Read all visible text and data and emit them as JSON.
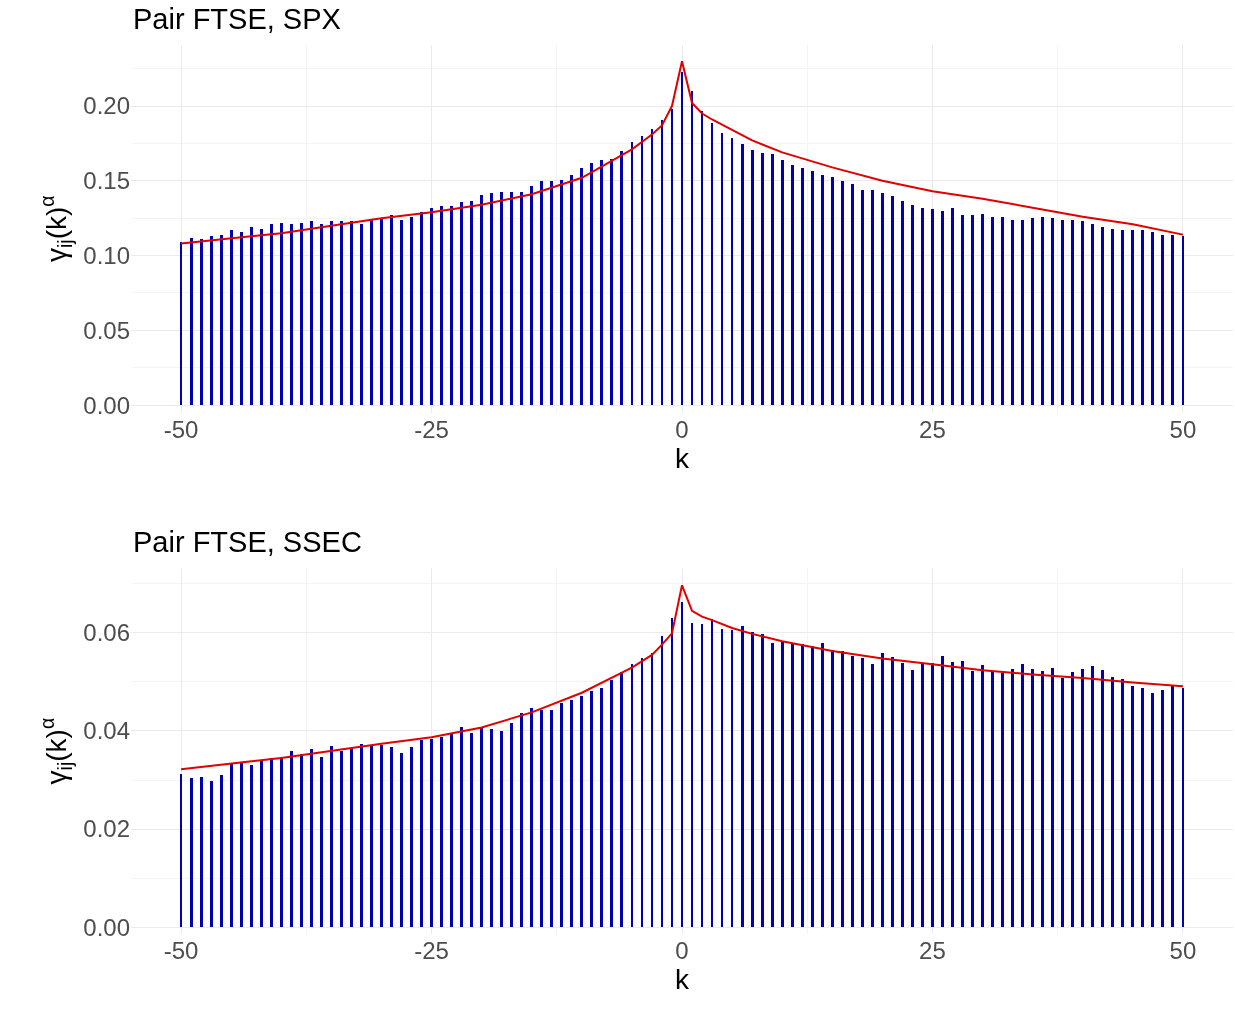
{
  "chart_data": [
    {
      "type": "bar",
      "title": "Pair FTSE, SPX",
      "xlabel": "k",
      "ylabel": "γ$_{ij}$(k)$^{α}$",
      "x": [
        -50,
        -49,
        -48,
        -47,
        -46,
        -45,
        -44,
        -43,
        -42,
        -41,
        -40,
        -39,
        -38,
        -37,
        -36,
        -35,
        -34,
        -33,
        -32,
        -31,
        -30,
        -29,
        -28,
        -27,
        -26,
        -25,
        -24,
        -23,
        -22,
        -21,
        -20,
        -19,
        -18,
        -17,
        -16,
        -15,
        -14,
        -13,
        -12,
        -11,
        -10,
        -9,
        -8,
        -7,
        -6,
        -5,
        -4,
        -3,
        -2,
        -1,
        0,
        1,
        2,
        3,
        4,
        5,
        6,
        7,
        8,
        9,
        10,
        11,
        12,
        13,
        14,
        15,
        16,
        17,
        18,
        19,
        20,
        21,
        22,
        23,
        24,
        25,
        26,
        27,
        28,
        29,
        30,
        31,
        32,
        33,
        34,
        35,
        36,
        37,
        38,
        39,
        40,
        41,
        42,
        43,
        44,
        45,
        46,
        47,
        48,
        49,
        50
      ],
      "series": [
        {
          "color": "#0000b0",
          "values": [
            0.109,
            0.112,
            0.111,
            0.113,
            0.114,
            0.117,
            0.116,
            0.119,
            0.118,
            0.121,
            0.122,
            0.121,
            0.122,
            0.123,
            0.121,
            0.123,
            0.123,
            0.123,
            0.121,
            0.124,
            0.125,
            0.127,
            0.124,
            0.126,
            0.129,
            0.132,
            0.133,
            0.133,
            0.136,
            0.137,
            0.141,
            0.142,
            0.143,
            0.143,
            0.143,
            0.147,
            0.15,
            0.15,
            0.151,
            0.154,
            0.159,
            0.162,
            0.164,
            0.165,
            0.17,
            0.176,
            0.18,
            0.185,
            0.191,
            0.198,
            0.223,
            0.21,
            0.197,
            0.189,
            0.182,
            0.179,
            0.175,
            0.171,
            0.169,
            0.168,
            0.164,
            0.161,
            0.159,
            0.157,
            0.154,
            0.153,
            0.15,
            0.148,
            0.144,
            0.144,
            0.142,
            0.14,
            0.137,
            0.134,
            0.132,
            0.131,
            0.13,
            0.132,
            0.127,
            0.127,
            0.128,
            0.126,
            0.126,
            0.124,
            0.124,
            0.125,
            0.126,
            0.125,
            0.124,
            0.124,
            0.123,
            0.121,
            0.119,
            0.118,
            0.117,
            0.117,
            0.117,
            0.116,
            0.114,
            0.114,
            0.113
          ]
        },
        {
          "type": "line",
          "color": "#e00000",
          "x": [
            -50,
            -40,
            -30,
            -25,
            -20,
            -15,
            -10,
            -5,
            -3,
            -2,
            -1,
            0,
            1,
            2,
            3,
            5,
            7,
            10,
            15,
            20,
            25,
            30,
            35,
            40,
            45,
            50
          ],
          "values": [
            0.108,
            0.115,
            0.125,
            0.129,
            0.134,
            0.141,
            0.152,
            0.171,
            0.181,
            0.187,
            0.2,
            0.23,
            0.202,
            0.195,
            0.191,
            0.184,
            0.177,
            0.169,
            0.159,
            0.15,
            0.143,
            0.138,
            0.132,
            0.126,
            0.121,
            0.114
          ]
        }
      ],
      "xlim": [
        -55,
        55
      ],
      "xticks": [
        -50,
        -25,
        0,
        25,
        50
      ],
      "ylim": [
        -0.005,
        0.241
      ],
      "yticks": [
        {
          "value": 0,
          "label": "0.00"
        },
        {
          "value": 0.05,
          "label": "0.05"
        },
        {
          "value": 0.1,
          "label": "0.10"
        },
        {
          "value": 0.15,
          "label": "0.15"
        },
        {
          "value": 0.2,
          "label": "0.20"
        }
      ],
      "grid": true
    },
    {
      "type": "bar",
      "title": "Pair FTSE, SSEC",
      "xlabel": "k",
      "ylabel": "γ$_{ij}$(k)$^{α}$",
      "x": [
        -50,
        -49,
        -48,
        -47,
        -46,
        -45,
        -44,
        -43,
        -42,
        -41,
        -40,
        -39,
        -38,
        -37,
        -36,
        -35,
        -34,
        -33,
        -32,
        -31,
        -30,
        -29,
        -28,
        -27,
        -26,
        -25,
        -24,
        -23,
        -22,
        -21,
        -20,
        -19,
        -18,
        -17,
        -16,
        -15,
        -14,
        -13,
        -12,
        -11,
        -10,
        -9,
        -8,
        -7,
        -6,
        -5,
        -4,
        -3,
        -2,
        -1,
        0,
        1,
        2,
        3,
        4,
        5,
        6,
        7,
        8,
        9,
        10,
        11,
        12,
        13,
        14,
        15,
        16,
        17,
        18,
        19,
        20,
        21,
        22,
        23,
        24,
        25,
        26,
        27,
        28,
        29,
        30,
        31,
        32,
        33,
        34,
        35,
        36,
        37,
        38,
        39,
        40,
        41,
        42,
        43,
        44,
        45,
        46,
        47,
        48,
        49,
        50
      ],
      "series": [
        {
          "color": "#0000b0",
          "values": [
            0.0312,
            0.0304,
            0.0306,
            0.0298,
            0.0311,
            0.0333,
            0.0335,
            0.0332,
            0.0341,
            0.0345,
            0.0348,
            0.036,
            0.0354,
            0.0364,
            0.0347,
            0.0371,
            0.036,
            0.0367,
            0.0374,
            0.037,
            0.0372,
            0.0368,
            0.0355,
            0.0368,
            0.0383,
            0.0385,
            0.0388,
            0.0395,
            0.0409,
            0.0396,
            0.0406,
            0.0404,
            0.0401,
            0.0416,
            0.0438,
            0.0448,
            0.0443,
            0.0443,
            0.0457,
            0.0463,
            0.0471,
            0.0483,
            0.0489,
            0.0504,
            0.052,
            0.0537,
            0.055,
            0.0559,
            0.0595,
            0.0632,
            0.0664,
            0.0621,
            0.0619,
            0.0628,
            0.0609,
            0.0607,
            0.0614,
            0.0603,
            0.0598,
            0.0581,
            0.0585,
            0.0579,
            0.0578,
            0.0574,
            0.0581,
            0.0565,
            0.0563,
            0.0553,
            0.055,
            0.0537,
            0.056,
            0.0551,
            0.0539,
            0.0525,
            0.0537,
            0.0539,
            0.0553,
            0.0542,
            0.0543,
            0.0524,
            0.0535,
            0.0521,
            0.0519,
            0.0528,
            0.0537,
            0.0527,
            0.0522,
            0.053,
            0.0509,
            0.052,
            0.0528,
            0.0534,
            0.0525,
            0.051,
            0.0507,
            0.0492,
            0.0488,
            0.0479,
            0.0484,
            0.0492,
            0.0488
          ]
        },
        {
          "type": "line",
          "color": "#e00000",
          "x": [
            -50,
            -40,
            -30,
            -25,
            -20,
            -15,
            -10,
            -5,
            -3,
            -2,
            -1,
            0,
            1,
            2,
            3,
            5,
            7,
            10,
            15,
            20,
            25,
            30,
            35,
            40,
            45,
            50
          ],
          "values": [
            0.0322,
            0.0345,
            0.0374,
            0.0387,
            0.0407,
            0.0438,
            0.0478,
            0.0529,
            0.0555,
            0.0576,
            0.0599,
            0.0697,
            0.0645,
            0.0633,
            0.0626,
            0.061,
            0.0598,
            0.0583,
            0.0563,
            0.0548,
            0.0536,
            0.0524,
            0.0515,
            0.0508,
            0.0499,
            0.0491
          ]
        }
      ],
      "xlim": [
        -55,
        55
      ],
      "xticks": [
        -50,
        -25,
        0,
        25,
        50
      ],
      "ylim": [
        -0.0015,
        0.0733
      ],
      "yticks": [
        {
          "value": 0,
          "label": "0.00"
        },
        {
          "value": 0.02,
          "label": "0.02"
        },
        {
          "value": 0.04,
          "label": "0.04"
        },
        {
          "value": 0.06,
          "label": "0.06"
        }
      ],
      "grid": true
    }
  ]
}
